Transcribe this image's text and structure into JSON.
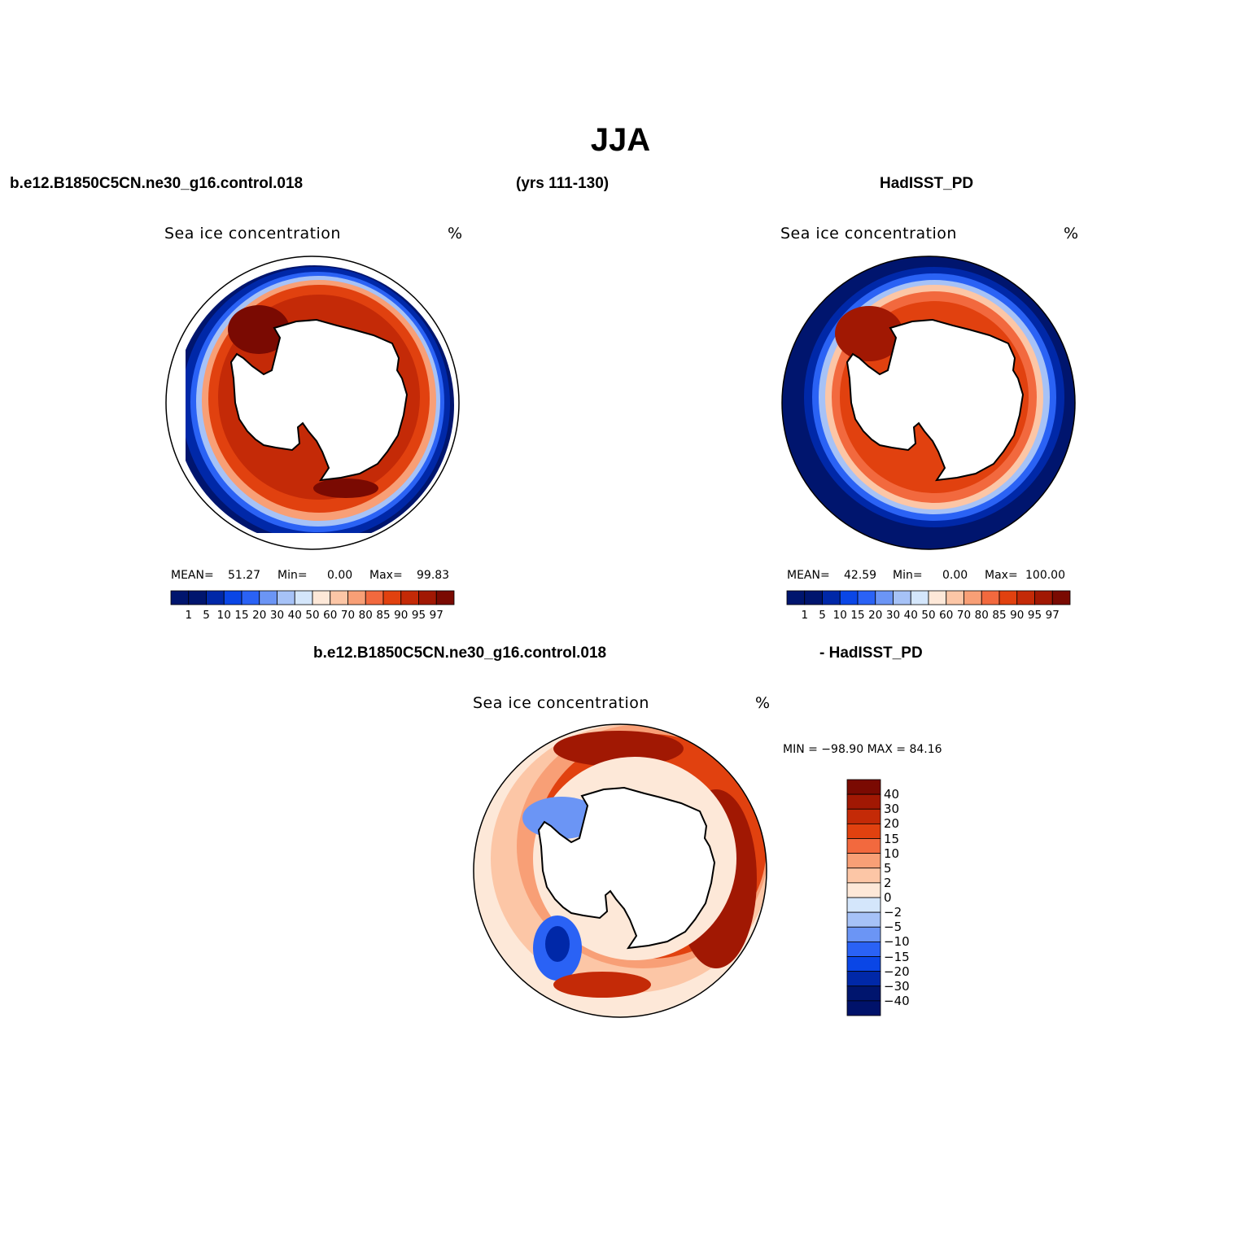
{
  "title": "JJA",
  "header": {
    "case_name": "b.e12.B1850C5CN.ne30_g16.control.018",
    "years": "(yrs 111-130)",
    "obs_name": "HadISST_PD",
    "diff_case": "b.e12.B1850C5CN.ne30_g16.control.018",
    "diff_obs": "- HadISST_PD"
  },
  "panels": {
    "model": {
      "variable": "Sea ice concentration",
      "units": "%",
      "stats": {
        "mean_label": "MEAN=",
        "mean": "51.27",
        "min_label": "Min=",
        "min": "0.00",
        "max_label": "Max=",
        "max": "99.83"
      }
    },
    "obs": {
      "variable": "Sea ice concentration",
      "units": "%",
      "stats": {
        "mean_label": "MEAN=",
        "mean": "42.59",
        "min_label": "Min=",
        "min": "0.00",
        "max_label": "Max=",
        "max": "100.00"
      }
    },
    "diff": {
      "variable": "Sea ice concentration",
      "units": "%",
      "stats_text": "MIN = −98.90 MAX =  84.16"
    }
  },
  "colorbar_abs": {
    "levels": [
      "1",
      "5",
      "10",
      "15",
      "20",
      "30",
      "40",
      "50",
      "60",
      "70",
      "80",
      "85",
      "90",
      "95",
      "97"
    ],
    "colors": [
      "#00156e",
      "#0028a8",
      "#0a46e6",
      "#2a62f5",
      "#6b95f5",
      "#a6c2f7",
      "#d4e6fb",
      "#fde8d8",
      "#fcc6a6",
      "#f89f76",
      "#f2693e",
      "#e1410f",
      "#c42a07",
      "#a11803",
      "#7a0a02"
    ]
  },
  "colorbar_diff": {
    "levels": [
      "40",
      "30",
      "20",
      "15",
      "10",
      "5",
      "2",
      "0",
      "−2",
      "−5",
      "−10",
      "−15",
      "−20",
      "−30",
      "−40"
    ],
    "colors": [
      "#7a0a02",
      "#a11803",
      "#c42a07",
      "#e1410f",
      "#f2693e",
      "#f89f76",
      "#fcc6a6",
      "#fde8d8",
      "#d4e6fb",
      "#a6c2f7",
      "#6b95f5",
      "#2a62f5",
      "#0a46e6",
      "#0028a8",
      "#00156e",
      "#00126a"
    ]
  }
}
